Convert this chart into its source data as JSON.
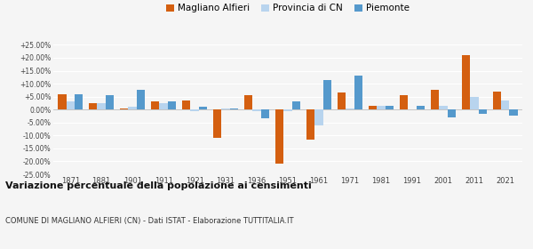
{
  "years": [
    1871,
    1881,
    1901,
    1911,
    1921,
    1931,
    1936,
    1951,
    1961,
    1971,
    1981,
    1991,
    2001,
    2011,
    2021
  ],
  "magliano": [
    6.0,
    2.5,
    0.5,
    3.0,
    3.5,
    -11.0,
    5.5,
    -21.0,
    -11.5,
    6.5,
    1.5,
    5.5,
    7.5,
    21.0,
    7.0
  ],
  "provincia": [
    3.0,
    2.5,
    1.0,
    2.5,
    -0.5,
    0.5,
    -0.5,
    -0.5,
    -6.0,
    0.5,
    1.5,
    0.0,
    1.5,
    5.0,
    3.5
  ],
  "piemonte": [
    6.0,
    5.5,
    7.5,
    3.0,
    1.0,
    0.5,
    -3.5,
    3.0,
    11.5,
    13.0,
    1.5,
    1.5,
    -3.0,
    -1.5,
    -2.5
  ],
  "color_magliano": "#d45f10",
  "color_provincia": "#b8d4ee",
  "color_piemonte": "#5599cc",
  "title": "Variazione percentuale della popolazione ai censimenti",
  "subtitle": "COMUNE DI MAGLIANO ALFIERI (CN) - Dati ISTAT - Elaborazione TUTTITALIA.IT",
  "ylim": [
    -25,
    25
  ],
  "yticks": [
    -25,
    -20,
    -15,
    -10,
    -5,
    0,
    5,
    10,
    15,
    20,
    25
  ],
  "legend_labels": [
    "Magliano Alfieri",
    "Provincia di CN",
    "Piemonte"
  ],
  "bg_color": "#f5f5f5"
}
